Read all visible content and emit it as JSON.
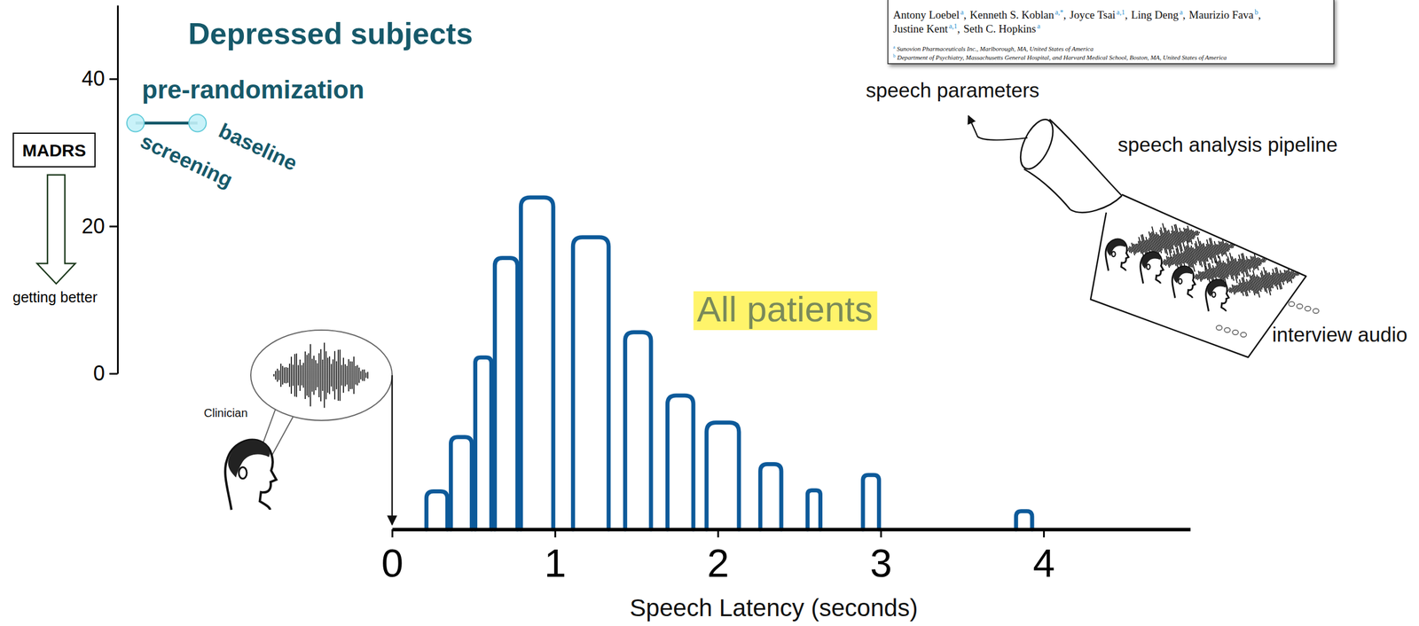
{
  "chart_data": [
    {
      "type": "line",
      "title": "Depressed subjects",
      "subtitle": "pre-randomization",
      "y_label": "MADRS",
      "annotation": "getting better",
      "categories": [
        "screening",
        "baseline"
      ],
      "values": [
        34,
        34
      ],
      "ylim": [
        0,
        50
      ],
      "yticks": [
        0,
        20,
        40
      ],
      "color": "#16596a",
      "marker": "circle",
      "tick_labels": "y"
    },
    {
      "type": "histogram",
      "title": "All patients",
      "x_label": "Speech Latency (seconds)",
      "bins": [
        0.2,
        0.35,
        0.5,
        0.62,
        0.78,
        1.0,
        1.1,
        1.34,
        1.42,
        1.6,
        1.68,
        1.86,
        1.92,
        2.14,
        2.25,
        2.4,
        2.54,
        2.64,
        2.88,
        3.0,
        3.82,
        3.94
      ],
      "values": [
        42,
        102,
        190,
        300,
        367,
        0,
        323,
        0,
        218,
        0,
        148,
        0,
        118,
        0,
        72,
        0,
        43,
        0,
        60,
        0,
        20
      ],
      "xlim": [
        0,
        4.9
      ],
      "xticks": [
        0,
        1,
        2,
        3,
        4
      ],
      "color": "#0d5a9a",
      "tick_labels": "x"
    }
  ],
  "diagram": {
    "clinician": "Clinician",
    "paper": {
      "authors": [
        {
          "name": "Antony Loebel",
          "sup": "a",
          "sep": ","
        },
        {
          "name": "Kenneth S. Koblan",
          "sup": "a,*",
          "sep": ","
        },
        {
          "name": "Joyce Tsai",
          "sup": "a,1",
          "sep": ","
        },
        {
          "name": "Ling Deng",
          "sup": "a",
          "sep": ","
        },
        {
          "name": "Maurizio Fava",
          "sup": "b",
          "sep": ","
        },
        {
          "name": "Justine Kent",
          "sup": "a,1",
          "sep": ","
        },
        {
          "name": "Seth C. Hopkins",
          "sup": "a"
        }
      ],
      "affiliations": [
        {
          "mark": "a",
          "text": "Sunovion Pharmaceuticals Inc., Marlborough, MA, United States of America"
        },
        {
          "mark": "b",
          "text": "Department of Psychiatry, Massachusetts General Hospital, and Harvard Medical School, Boston, MA, United States of America"
        }
      ]
    },
    "speech_parameters": "speech parameters",
    "pipeline": "speech analysis pipeline",
    "audio": "interview audio"
  }
}
